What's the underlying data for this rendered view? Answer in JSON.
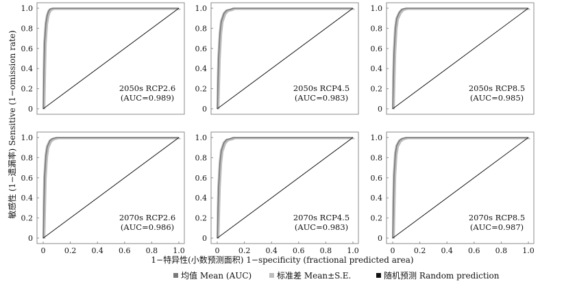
{
  "figure": {
    "ylabel": "敏感性 (1−遗漏率) Sensitive (1−omission rate)",
    "xlabel": "1−特异性(小数预测面积) 1−specificity (fractional predicted area)",
    "x_ticks": [
      "0",
      "0.2",
      "0.4",
      "0.6",
      "0.8",
      "1.0"
    ],
    "y_ticks": [
      "0",
      "0.2",
      "0.4",
      "0.6",
      "0.8",
      "1.0"
    ],
    "legend": [
      {
        "label": "均值 Mean (AUC)",
        "color": "#7a7a7a"
      },
      {
        "label": "标准差 Mean±S.E.",
        "color": "#bdbdbd"
      },
      {
        "label": "随机预测 Random prediction",
        "color": "#111111"
      }
    ]
  },
  "chart_data": [
    {
      "type": "line",
      "scenario": "2050s RCP2.6",
      "auc_label": "(AUC=0.989)",
      "auc": 0.989,
      "xlim": [
        0,
        1
      ],
      "ylim": [
        0,
        1
      ],
      "series": [
        {
          "name": "均值 Mean (AUC)",
          "x": [
            0,
            0.005,
            0.01,
            0.02,
            0.03,
            0.04,
            0.05,
            0.07,
            0.1,
            1.0
          ],
          "y": [
            0,
            0.35,
            0.65,
            0.85,
            0.93,
            0.97,
            0.99,
            1.0,
            1.0,
            1.0
          ]
        },
        {
          "name": "随机预测 Random prediction",
          "x": [
            0,
            1
          ],
          "y": [
            0,
            1
          ]
        }
      ]
    },
    {
      "type": "line",
      "scenario": "2050s RCP4.5",
      "auc_label": "(AUC=0.983)",
      "auc": 0.983,
      "xlim": [
        0,
        1
      ],
      "ylim": [
        0,
        1
      ],
      "series": [
        {
          "name": "均值 Mean (AUC)",
          "x": [
            0,
            0.005,
            0.01,
            0.02,
            0.03,
            0.05,
            0.07,
            0.1,
            0.12,
            1.0
          ],
          "y": [
            0,
            0.25,
            0.5,
            0.75,
            0.87,
            0.95,
            0.98,
            0.99,
            1.0,
            1.0
          ]
        },
        {
          "name": "随机预测 Random prediction",
          "x": [
            0,
            1
          ],
          "y": [
            0,
            1
          ]
        }
      ]
    },
    {
      "type": "line",
      "scenario": "2050s RCP8.5",
      "auc_label": "(AUC=0.985)",
      "auc": 0.985,
      "xlim": [
        0,
        1
      ],
      "ylim": [
        0,
        1
      ],
      "series": [
        {
          "name": "均值 Mean (AUC)",
          "x": [
            0,
            0.005,
            0.01,
            0.02,
            0.03,
            0.05,
            0.07,
            0.1,
            1.0
          ],
          "y": [
            0,
            0.3,
            0.55,
            0.8,
            0.9,
            0.96,
            0.99,
            1.0,
            1.0
          ]
        },
        {
          "name": "随机预测 Random prediction",
          "x": [
            0,
            1
          ],
          "y": [
            0,
            1
          ]
        }
      ]
    },
    {
      "type": "line",
      "scenario": "2070s RCP2.6",
      "auc_label": "(AUC=0.986)",
      "auc": 0.986,
      "xlim": [
        0,
        1
      ],
      "ylim": [
        0,
        1
      ],
      "series": [
        {
          "name": "均值 Mean (AUC)",
          "x": [
            0,
            0.005,
            0.01,
            0.02,
            0.03,
            0.05,
            0.07,
            0.1,
            1.0
          ],
          "y": [
            0,
            0.3,
            0.6,
            0.82,
            0.91,
            0.97,
            0.99,
            1.0,
            1.0
          ]
        },
        {
          "name": "随机预测 Random prediction",
          "x": [
            0,
            1
          ],
          "y": [
            0,
            1
          ]
        }
      ]
    },
    {
      "type": "line",
      "scenario": "2070s RCP4.5",
      "auc_label": "(AUC=0.983)",
      "auc": 0.983,
      "xlim": [
        0,
        1
      ],
      "ylim": [
        0,
        1
      ],
      "series": [
        {
          "name": "均值 Mean (AUC)",
          "x": [
            0,
            0.005,
            0.01,
            0.02,
            0.03,
            0.05,
            0.07,
            0.1,
            0.12,
            1.0
          ],
          "y": [
            0,
            0.25,
            0.5,
            0.75,
            0.87,
            0.95,
            0.98,
            0.99,
            1.0,
            1.0
          ]
        },
        {
          "name": "随机预测 Random prediction",
          "x": [
            0,
            1
          ],
          "y": [
            0,
            1
          ]
        }
      ]
    },
    {
      "type": "line",
      "scenario": "2070s RCP8.5",
      "auc_label": "(AUC=0.987)",
      "auc": 0.987,
      "xlim": [
        0,
        1
      ],
      "ylim": [
        0,
        1
      ],
      "series": [
        {
          "name": "均值 Mean (AUC)",
          "x": [
            0,
            0.005,
            0.01,
            0.02,
            0.03,
            0.05,
            0.07,
            0.1,
            1.0
          ],
          "y": [
            0,
            0.32,
            0.62,
            0.84,
            0.92,
            0.97,
            0.99,
            1.0,
            1.0
          ]
        },
        {
          "name": "随机预测 Random prediction",
          "x": [
            0,
            1
          ],
          "y": [
            0,
            1
          ]
        }
      ]
    }
  ]
}
